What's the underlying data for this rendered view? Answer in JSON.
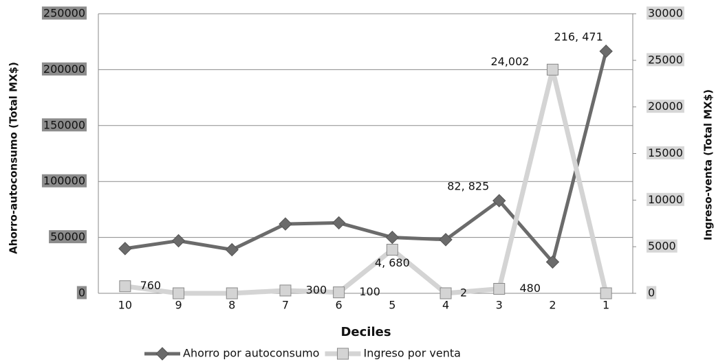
{
  "chart_data": {
    "type": "line",
    "x_label": "Deciles",
    "y_label": "Ahorro-autoconsumo (Total MX$)",
    "y2_label": "Ingreso-venta (Total MX$)",
    "categories": [
      "10",
      "9",
      "8",
      "7",
      "6",
      "5",
      "4",
      "3",
      "2",
      "1"
    ],
    "series": [
      {
        "name": "Ahorro por autoconsumo",
        "color": "#6b6b6b",
        "marker": "diamond",
        "values": [
          40000,
          47000,
          39000,
          62000,
          63000,
          50000,
          48000,
          82825,
          28000,
          216471
        ],
        "value_labels": [
          null,
          null,
          null,
          null,
          null,
          null,
          null,
          "82, 825",
          null,
          "216, 471"
        ]
      },
      {
        "name": "Ingreso por venta",
        "color": "#d4d4d4",
        "marker": "square",
        "axis": "y2",
        "values": [
          760,
          0,
          0,
          300,
          100,
          4680,
          2,
          480,
          24002,
          0
        ],
        "value_labels": [
          "760",
          null,
          null,
          "300",
          "100",
          "4, 680",
          "2",
          "480",
          "24,002",
          null
        ]
      }
    ],
    "ylim": [
      0,
      250000
    ],
    "yticks": [
      0,
      50000,
      100000,
      150000,
      200000,
      250000
    ],
    "y2lim": [
      0,
      30000
    ],
    "y2ticks": [
      0,
      5000,
      10000,
      15000,
      20000,
      25000,
      30000
    ],
    "grid": true,
    "legend": "bottom"
  }
}
